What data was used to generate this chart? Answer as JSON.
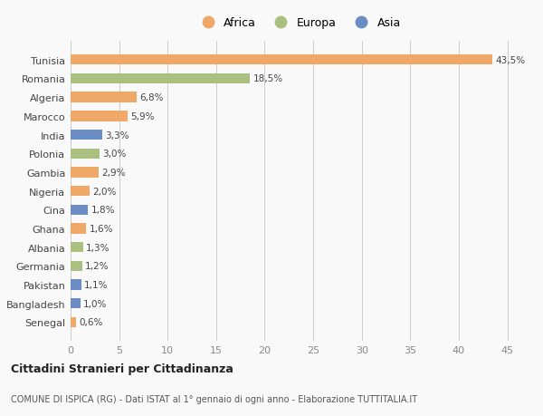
{
  "countries": [
    "Tunisia",
    "Romania",
    "Algeria",
    "Marocco",
    "India",
    "Polonia",
    "Gambia",
    "Nigeria",
    "Cina",
    "Ghana",
    "Albania",
    "Germania",
    "Pakistan",
    "Bangladesh",
    "Senegal"
  ],
  "values": [
    43.5,
    18.5,
    6.8,
    5.9,
    3.3,
    3.0,
    2.9,
    2.0,
    1.8,
    1.6,
    1.3,
    1.2,
    1.1,
    1.0,
    0.6
  ],
  "labels": [
    "43,5%",
    "18,5%",
    "6,8%",
    "5,9%",
    "3,3%",
    "3,0%",
    "2,9%",
    "2,0%",
    "1,8%",
    "1,6%",
    "1,3%",
    "1,2%",
    "1,1%",
    "1,0%",
    "0,6%"
  ],
  "continents": [
    "Africa",
    "Europa",
    "Africa",
    "Africa",
    "Asia",
    "Europa",
    "Africa",
    "Africa",
    "Asia",
    "Africa",
    "Europa",
    "Europa",
    "Asia",
    "Asia",
    "Africa"
  ],
  "colors": {
    "Africa": "#F0A868",
    "Europa": "#AABF80",
    "Asia": "#6B8CC4"
  },
  "xlim": [
    0,
    47
  ],
  "xticks": [
    0,
    5,
    10,
    15,
    20,
    25,
    30,
    35,
    40,
    45
  ],
  "title1": "Cittadini Stranieri per Cittadinanza",
  "title2": "COMUNE DI ISPICA (RG) - Dati ISTAT al 1° gennaio di ogni anno - Elaborazione TUTTITALIA.IT",
  "bg_color": "#f9f9f9",
  "grid_color": "#cccccc",
  "bar_height": 0.55,
  "label_fontsize": 7.5,
  "ytick_fontsize": 8,
  "xtick_fontsize": 8
}
